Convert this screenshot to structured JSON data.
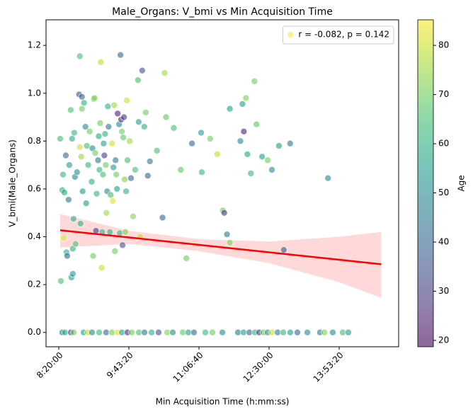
{
  "chart_data": {
    "type": "scatter",
    "title": "Male_Organs: V_bmi vs Min Acquisition Time",
    "x_label": "Min Acquisition Time (h:mm:ss)",
    "y_label": "V_bmi(Male_Organs)",
    "colorbar_label": "Age",
    "cmap": "viridis",
    "legend_position": "upper right",
    "xlim": [
      29090,
      54240
    ],
    "ylim": [
      -0.06,
      1.307
    ],
    "clim": [
      18.7,
      85.2
    ],
    "xticks": [
      {
        "value": 30000,
        "label": "8:20:00"
      },
      {
        "value": 35000,
        "label": "9:43:20"
      },
      {
        "value": 40000,
        "label": "11:06:40"
      },
      {
        "value": 45000,
        "label": "12:30:00"
      },
      {
        "value": 50000,
        "label": "13:53:20"
      }
    ],
    "yticks": [
      0.0,
      0.2,
      0.4,
      0.6,
      0.8,
      1.0,
      1.2
    ],
    "cticks": [
      20,
      30,
      40,
      50,
      60,
      70,
      80
    ],
    "series": [
      {
        "name": "r = -0.082, p = 0.142",
        "color": "#fde725",
        "x": [
          30100,
          30150,
          30250,
          30300,
          30400,
          30350,
          30500,
          30550,
          30600,
          30700,
          30750,
          30850,
          30900,
          30950,
          31000,
          31000,
          31050,
          31100,
          31150,
          31200,
          31300,
          31450,
          31500,
          31500,
          31550,
          31600,
          31650,
          31650,
          31700,
          31800,
          31900,
          31950,
          32000,
          32100,
          32200,
          32350,
          32400,
          32450,
          32500,
          32550,
          32600,
          32650,
          32700,
          32800,
          32850,
          32900,
          32950,
          33000,
          33050,
          33100,
          33150,
          33200,
          33250,
          33300,
          33350,
          33400,
          33450,
          33500,
          33550,
          33650,
          33700,
          33800,
          33850,
          33900,
          33950,
          34000,
          34050,
          34100,
          34150,
          34200,
          34300,
          34350,
          34400,
          34450,
          34500,
          34550,
          34600,
          34650,
          34700,
          34750,
          34800,
          34850,
          34900,
          35050,
          35150,
          35300,
          35450,
          35650,
          35700,
          35800,
          35950,
          36100,
          36200,
          36350,
          36500,
          37000,
          37400,
          37550,
          37650,
          38200,
          38700,
          39100,
          39500,
          40150,
          40200,
          40800,
          41300,
          41700,
          41800,
          42000,
          42200,
          42200,
          42950,
          43100,
          43200,
          43350,
          43450,
          43700,
          43950,
          44100,
          44500,
          44900,
          45200,
          45700,
          46050,
          46500,
          49200,
          30250,
          30450,
          30860,
          31060,
          31770,
          32070,
          32370,
          32880,
          33380,
          33790,
          34190,
          34500,
          34900,
          35200,
          35710,
          36110,
          36620,
          37120,
          37730,
          38130,
          38840,
          39240,
          39640,
          40450,
          40960,
          41670,
          42780,
          43180,
          43590,
          43990,
          44290,
          44590,
          44900,
          45200,
          45610,
          46010,
          46510,
          47020,
          47730,
          48630,
          48940,
          49540,
          50250,
          50650
        ],
        "values": [
          0.81,
          0.215,
          0.595,
          0.66,
          0.585,
          0.395,
          0.74,
          0.335,
          0.32,
          0.555,
          0.7,
          0.93,
          0.23,
          0.81,
          0.245,
          0.35,
          0.475,
          0.835,
          0.65,
          0.37,
          0.67,
          0.995,
          1.155,
          0.775,
          0.455,
          0.735,
          0.985,
          0.935,
          0.59,
          0.96,
          0.86,
          0.54,
          0.78,
          0.7,
          0.84,
          0.63,
          0.77,
          0.32,
          0.975,
          0.98,
          0.75,
          0.425,
          0.58,
          0.72,
          0.82,
          0.68,
          0.875,
          1.13,
          0.27,
          0.42,
          0.66,
          0.79,
          0.74,
          0.83,
          0.7,
          0.5,
          0.59,
          0.945,
          0.86,
          0.42,
          0.575,
          0.79,
          0.55,
          0.69,
          0.95,
          0.34,
          0.72,
          0.66,
          0.6,
          0.915,
          0.87,
          0.415,
          1.16,
          0.89,
          0.84,
          0.365,
          0.815,
          0.9,
          0.64,
          0.42,
          0.59,
          0.97,
          0.72,
          0.8,
          0.645,
          0.485,
          0.68,
          1.055,
          0.88,
          0.4,
          1.095,
          0.86,
          0.92,
          0.655,
          0.715,
          0.76,
          0.48,
          1.085,
          0.9,
          0.855,
          0.68,
          0.31,
          0.79,
          0.835,
          0.67,
          0.81,
          0.745,
          0.51,
          0.5,
          0.41,
          0.935,
          0.375,
          0.8,
          0.955,
          0.84,
          0.98,
          0.745,
          0.665,
          1.05,
          0.87,
          0.735,
          0.72,
          0.68,
          0.78,
          0.345,
          0.79,
          0.645,
          0,
          0,
          0,
          0,
          0,
          0,
          0,
          0,
          0,
          0,
          0,
          0,
          0,
          0,
          0,
          0,
          0,
          0,
          0,
          0,
          0,
          0,
          0,
          0,
          0,
          0,
          0,
          0,
          0,
          0,
          0,
          0,
          0,
          0,
          0,
          0,
          0,
          0,
          0,
          0,
          0,
          0,
          0,
          0
        ],
        "c": [
          65,
          65,
          60,
          62,
          58,
          82,
          40,
          60,
          40,
          45,
          55,
          65,
          55,
          60,
          55,
          60,
          60,
          62,
          50,
          65,
          50,
          35,
          65,
          80,
          60,
          75,
          40,
          70,
          55,
          60,
          50,
          55,
          65,
          62,
          70,
          60,
          50,
          70,
          70,
          72,
          70,
          30,
          62,
          45,
          58,
          62,
          70,
          78,
          80,
          62,
          65,
          55,
          30,
          60,
          70,
          75,
          50,
          60,
          45,
          60,
          65,
          80,
          82,
          55,
          75,
          70,
          45,
          70,
          55,
          25,
          50,
          62,
          40,
          25,
          70,
          35,
          68,
          30,
          72,
          72,
          60,
          80,
          65,
          75,
          40,
          72,
          65,
          65,
          55,
          78,
          35,
          60,
          70,
          40,
          45,
          65,
          40,
          75,
          68,
          65,
          68,
          70,
          40,
          55,
          62,
          70,
          78,
          70,
          30,
          45,
          55,
          72,
          50,
          55,
          25,
          72,
          58,
          62,
          70,
          68,
          55,
          70,
          50,
          55,
          35,
          45,
          50,
          45,
          60,
          30,
          70,
          55,
          80,
          50,
          62,
          40,
          70,
          82,
          55,
          25,
          70,
          65,
          45,
          60,
          35,
          72,
          50,
          68,
          55,
          40,
          62,
          70,
          50,
          45,
          55,
          40,
          60,
          30,
          70,
          50,
          80,
          45,
          62,
          55,
          40,
          50,
          45,
          72,
          50,
          65,
          55
        ]
      }
    ],
    "regression": {
      "color": "#ff0000",
      "x": [
        30100,
        35000,
        40000,
        45000,
        50000,
        53000
      ],
      "y": [
        0.427,
        0.397,
        0.366,
        0.335,
        0.304,
        0.285
      ],
      "ci_lower": [
        0.355,
        0.37,
        0.34,
        0.29,
        0.21,
        0.145
      ],
      "ci_upper": [
        0.495,
        0.425,
        0.39,
        0.38,
        0.4,
        0.42
      ]
    }
  }
}
